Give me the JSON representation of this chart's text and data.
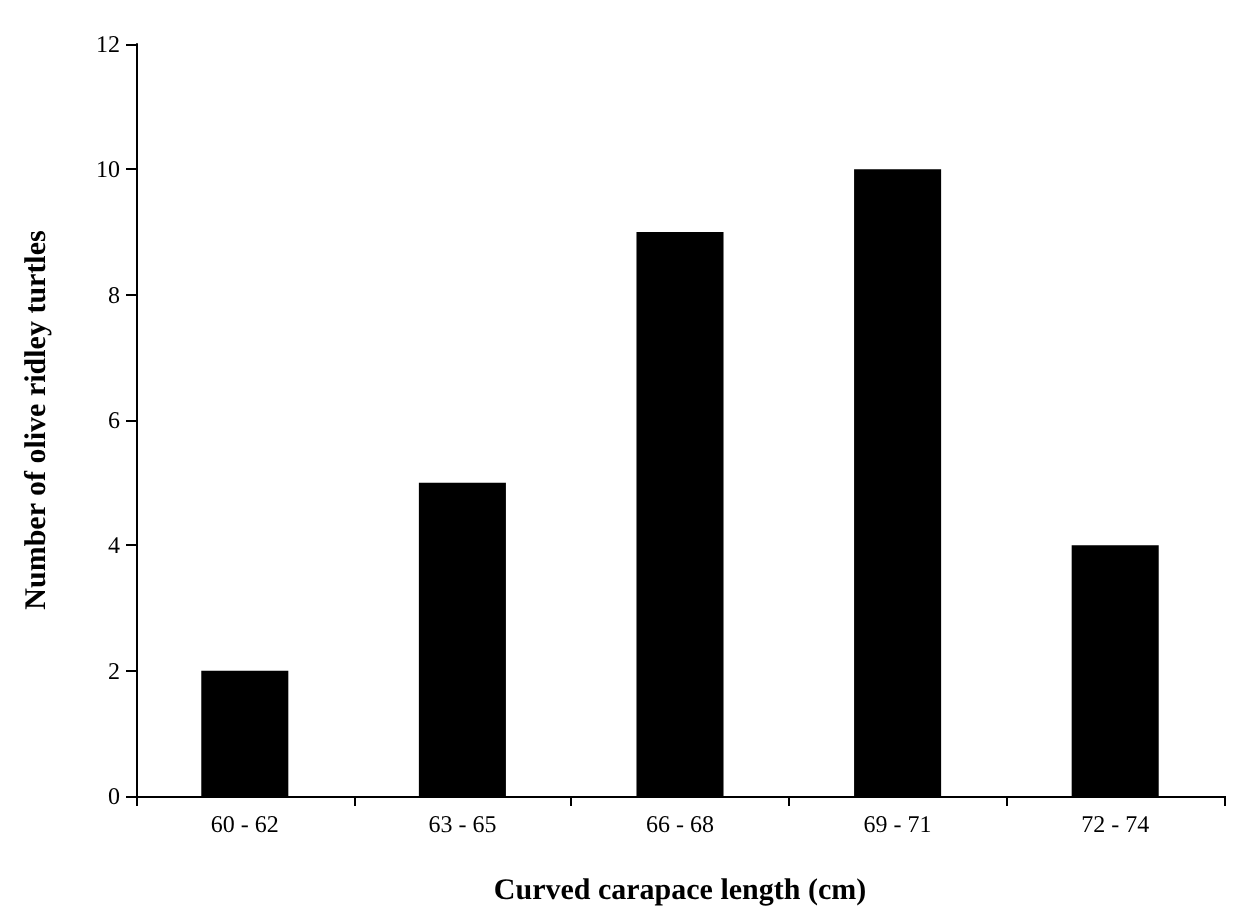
{
  "chart_data": {
    "type": "bar",
    "xlabel": "Curved carapace length (cm)",
    "ylabel": "Number of olive ridley turtles",
    "categories": [
      "60 - 62",
      "63 - 65",
      "66 - 68",
      "69 - 71",
      "72 - 74"
    ],
    "values": [
      2,
      5,
      9,
      10,
      4
    ],
    "color": "#000000",
    "ylim": [
      0,
      12
    ],
    "yticks": [
      0,
      2,
      4,
      6,
      8,
      10,
      12
    ]
  }
}
